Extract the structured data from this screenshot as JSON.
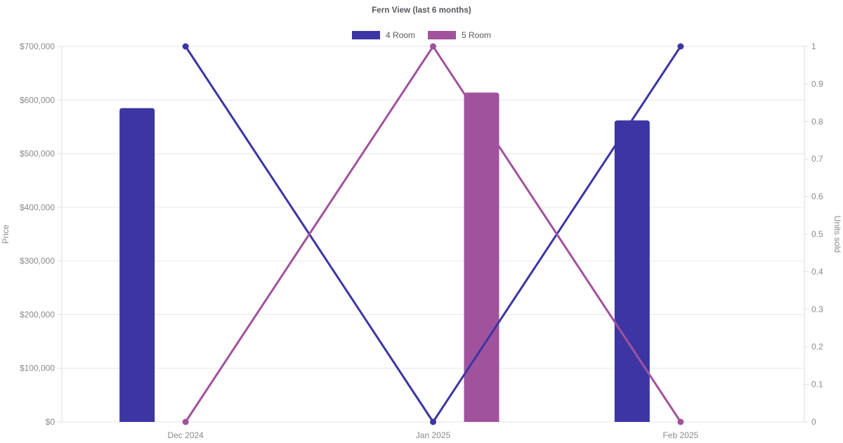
{
  "title": "Fern View (last 6 months)",
  "legend": [
    {
      "label": "4 Room",
      "color": "#3c35a3"
    },
    {
      "label": "5 Room",
      "color": "#a1529c"
    }
  ],
  "chart_data": {
    "type": "combo (bar + line, dual axis)",
    "categories": [
      "Dec 2024",
      "Jan 2025",
      "Feb 2025"
    ],
    "series": [
      {
        "name": "4 Room",
        "type": "bar",
        "axis": "left",
        "measure": "price",
        "values": [
          585000,
          null,
          562000
        ],
        "color": "#3c35a3"
      },
      {
        "name": "5 Room",
        "type": "bar",
        "axis": "left",
        "measure": "price",
        "values": [
          null,
          614000,
          null
        ],
        "color": "#a1529c"
      },
      {
        "name": "4 Room",
        "type": "line",
        "axis": "right",
        "measure": "units_sold",
        "values": [
          1,
          0,
          1
        ],
        "color": "#3c35a3"
      },
      {
        "name": "5 Room",
        "type": "line",
        "axis": "right",
        "measure": "units_sold",
        "values": [
          0,
          1,
          0
        ],
        "color": "#a1529c"
      }
    ],
    "left_axis": {
      "title": "Price",
      "min": 0,
      "max": 700000,
      "step": 100000,
      "tick_labels": [
        "$0",
        "$100,000",
        "$200,000",
        "$300,000",
        "$400,000",
        "$500,000",
        "$600,000",
        "$700,000"
      ]
    },
    "right_axis": {
      "title": "Units sold",
      "min": 0,
      "max": 1,
      "step": 0.1,
      "tick_labels": [
        "0",
        "0.1",
        "0.2",
        "0.3",
        "0.4",
        "0.5",
        "0.6",
        "0.7",
        "0.8",
        "0.9",
        "1"
      ]
    },
    "grid": "horizontal gridlines from left axis only",
    "legend_position": "top center",
    "colors": {
      "grid": "#e6e6e6",
      "axis_line": "#dedede",
      "tick_text": "#8a8a8a",
      "title_text": "#55565c"
    }
  }
}
